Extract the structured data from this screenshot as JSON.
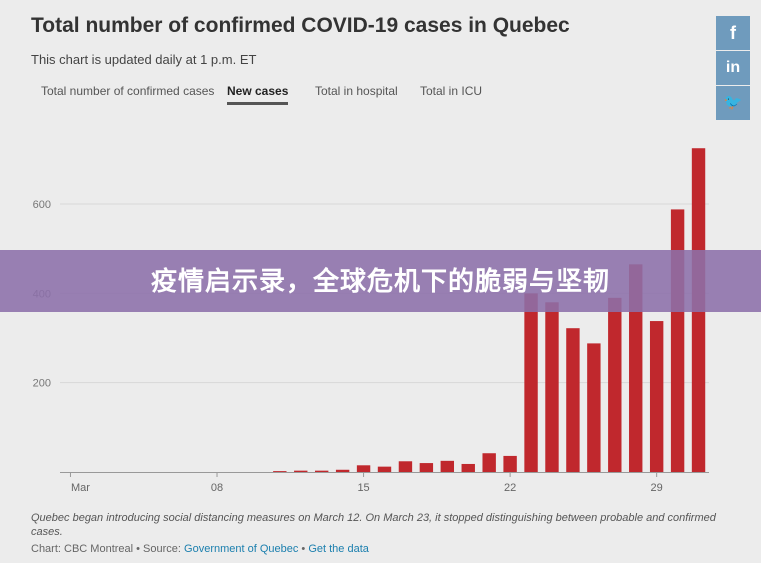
{
  "header": {
    "title": "Total number of confirmed COVID-19 cases in Quebec",
    "subtitle": "This chart is updated daily at 1 p.m. ET"
  },
  "tabs": [
    {
      "label": "Total number of confirmed cases",
      "active": false
    },
    {
      "label": "New cases",
      "active": true
    },
    {
      "label": "Total in hospital",
      "active": false
    },
    {
      "label": "Total in ICU",
      "active": false
    }
  ],
  "banner": {
    "text": "疫情启示录，全球危机下的脆弱与坚韧"
  },
  "social": [
    {
      "name": "facebook",
      "glyph": "f"
    },
    {
      "name": "linkedin",
      "glyph": "in"
    },
    {
      "name": "twitter",
      "glyph": "🐦"
    }
  ],
  "footnote": "Quebec began introducing social distancing measures on March 12. On March 23, it stopped distinguishing between probable and confirmed cases.",
  "credits": {
    "prefix": "Chart: CBC Montreal • Source: ",
    "source_link": "Government of Quebec",
    "separator": " • ",
    "data_link": "Get the data"
  },
  "chart_data": {
    "type": "bar",
    "bar_color": "#c0282d",
    "ylim": [
      0,
      730
    ],
    "yticks": [
      200,
      400,
      600
    ],
    "x": [
      "Mar 1",
      "Mar 2",
      "Mar 3",
      "Mar 4",
      "Mar 5",
      "Mar 6",
      "Mar 7",
      "Mar 8",
      "Mar 9",
      "Mar 10",
      "Mar 11",
      "Mar 12",
      "Mar 13",
      "Mar 14",
      "Mar 15",
      "Mar 16",
      "Mar 17",
      "Mar 18",
      "Mar 19",
      "Mar 20",
      "Mar 21",
      "Mar 22",
      "Mar 23",
      "Mar 24",
      "Mar 25",
      "Mar 26",
      "Mar 27",
      "Mar 28",
      "Mar 29",
      "Mar 30",
      "Mar 31"
    ],
    "values": [
      0,
      0,
      0,
      0,
      0,
      0,
      0,
      0,
      0,
      0,
      2,
      3,
      3,
      5,
      15,
      12,
      24,
      20,
      25,
      18,
      42,
      36,
      400,
      380,
      322,
      288,
      390,
      465,
      338,
      588,
      725
    ],
    "xtick_labels": [
      {
        "index": 0,
        "label": "Mar"
      },
      {
        "index": 7,
        "label": "08"
      },
      {
        "index": 14,
        "label": "15"
      },
      {
        "index": 21,
        "label": "22"
      },
      {
        "index": 28,
        "label": "29"
      }
    ]
  }
}
